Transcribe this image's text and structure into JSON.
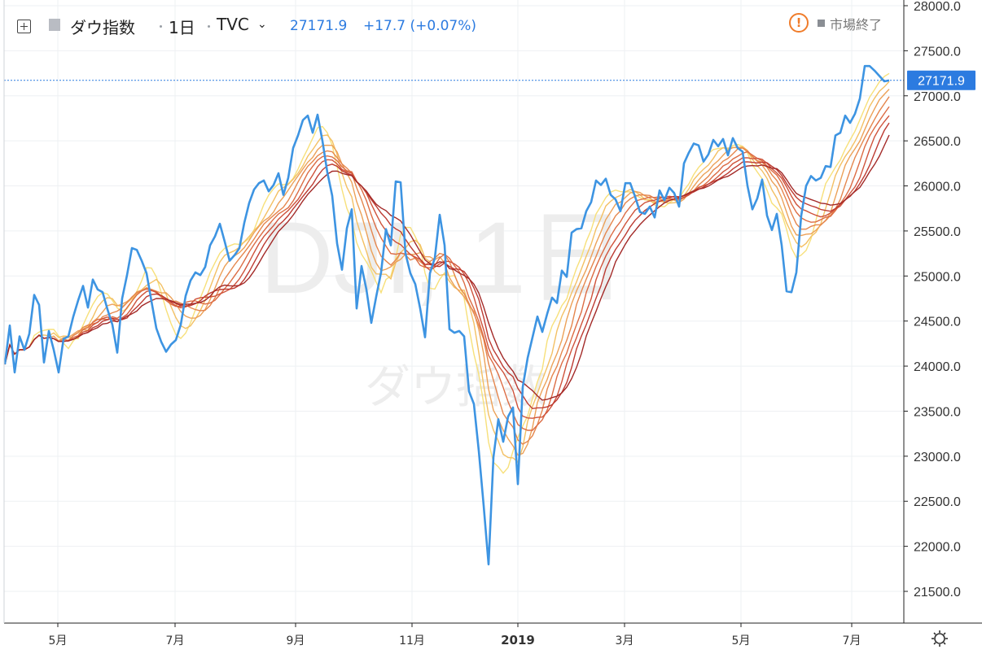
{
  "header": {
    "symbol_name": "ダウ指数",
    "interval": "1日",
    "exchange": "TVC",
    "last_price": "27171.9",
    "change": "+17.7 (+0.07%)",
    "market_status": "市場終了"
  },
  "watermark": {
    "ticker": "DJI, 1日",
    "name": "ダウ指数"
  },
  "chart_data": {
    "type": "line",
    "price_axis_ticks": [
      "28000.0",
      "27500.0",
      "27000.0",
      "26500.0",
      "26000.0",
      "25500.0",
      "25000.0",
      "24500.0",
      "24000.0",
      "23500.0",
      "23000.0",
      "22500.0",
      "22000.0",
      "21500.0"
    ],
    "time_axis_ticks": [
      "5月",
      "7月",
      "9月",
      "11月",
      "2019",
      "3月",
      "5月",
      "7月"
    ],
    "last_price_label": "27171.9",
    "ylim": [
      21300,
      28100
    ],
    "grid": true,
    "colors": {
      "price": "#3d94e2",
      "ribbon": [
        "#f7e07a",
        "#f3c064",
        "#eca158",
        "#e5864d",
        "#dc6c44",
        "#cf533b",
        "#bd3b32",
        "#a32a28"
      ]
    },
    "series": [
      {
        "values": [
          24020,
          24450,
          23930,
          24330,
          24180,
          24360,
          24790,
          24680,
          24040,
          24390,
          24180,
          23930,
          24300,
          24330,
          24550,
          24730,
          24890,
          24650,
          24960,
          24850,
          24820,
          24630,
          24460,
          24150,
          24750,
          25010,
          25310,
          25290,
          25170,
          25030,
          24720,
          24420,
          24270,
          24160,
          24240,
          24290,
          24460,
          24780,
          24950,
          25040,
          25010,
          25100,
          25340,
          25440,
          25580,
          25380,
          25170,
          25230,
          25310,
          25590,
          25810,
          25960,
          26030,
          26060,
          25940,
          26010,
          26140,
          25900,
          26090,
          26420,
          26560,
          26730,
          26780,
          26590,
          26790,
          26500,
          26150,
          25890,
          25360,
          25070,
          25530,
          25740,
          24640,
          25110,
          24850,
          24480,
          24770,
          25040,
          25520,
          25340,
          26050,
          26040,
          25250,
          25030,
          24910,
          24640,
          24320,
          25030,
          25200,
          25680,
          25340,
          24410,
          24370,
          24390,
          24330,
          23720,
          23580,
          23060,
          22450,
          21800,
          22990,
          23410,
          23160,
          23440,
          23540,
          22690,
          23770,
          24090,
          24320,
          24550,
          24380,
          24580,
          24760,
          24700,
          25060,
          24990,
          25480,
          25520,
          25530,
          25720,
          25820,
          26060,
          26010,
          26080,
          25900,
          25850,
          25720,
          26030,
          26030,
          25880,
          25710,
          25690,
          25770,
          25650,
          25950,
          25840,
          25980,
          25920,
          25770,
          26250,
          26370,
          26470,
          26450,
          26270,
          26350,
          26510,
          26440,
          26520,
          26340,
          26530,
          26420,
          26380,
          26000,
          25740,
          25860,
          26070,
          25670,
          25510,
          25690,
          25340,
          24830,
          24820,
          25040,
          25670,
          26000,
          26110,
          26060,
          26090,
          26220,
          26210,
          26560,
          26590,
          26780,
          26700,
          26800,
          26970,
          27330,
          27330,
          27280,
          27220,
          27160,
          27170
        ]
      }
    ]
  }
}
